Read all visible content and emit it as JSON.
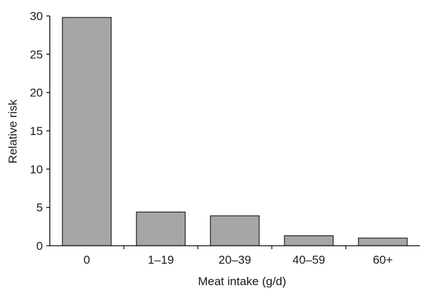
{
  "chart_data": {
    "type": "bar",
    "title": "",
    "xlabel": "Meat intake (g/d)",
    "ylabel": "Relative risk",
    "categories": [
      "0",
      "1–19",
      "20–39",
      "40–59",
      "60+"
    ],
    "values": [
      29.8,
      4.4,
      3.9,
      1.3,
      1.0
    ],
    "ylim": [
      0,
      30
    ],
    "yticks": [
      0,
      5,
      10,
      15,
      20,
      25,
      30
    ],
    "grid": false,
    "legend": "none",
    "bar_color": "#a6a6a6",
    "bar_edge_color": "#000000"
  }
}
